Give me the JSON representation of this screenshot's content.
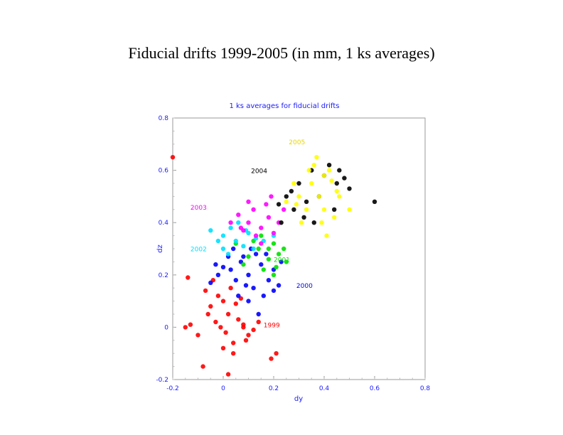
{
  "slide": {
    "title": "Fiducial drifts 1999-2005 (in mm, 1 ks averages)"
  },
  "chart_data": {
    "type": "scatter",
    "title": "1 ks averages for fiducial drifts",
    "xlabel": "dy",
    "ylabel": "dz",
    "xlim": [
      -0.2,
      0.8
    ],
    "ylim": [
      -0.2,
      0.8
    ],
    "xticks": [
      "-0.2",
      "0",
      "0.2",
      "0.4",
      "0.6",
      "0.8"
    ],
    "yticks": [
      "-0.2",
      "0",
      "0.2",
      "0.4",
      "0.6",
      "0.8"
    ],
    "grid": false,
    "series": [
      {
        "name": "1999",
        "color": "#ff0000",
        "label_at": [
          0.16,
          0.0
        ],
        "points": [
          [
            0.0,
            0.1
          ],
          [
            -0.05,
            0.08
          ],
          [
            0.02,
            0.05
          ],
          [
            -0.03,
            0.02
          ],
          [
            0.01,
            -0.02
          ],
          [
            0.04,
            -0.06
          ],
          [
            -0.02,
            0.12
          ],
          [
            0.03,
            0.15
          ],
          [
            0.06,
            0.03
          ],
          [
            0.0,
            -0.08
          ],
          [
            -0.06,
            0.05
          ],
          [
            0.08,
            0.0
          ],
          [
            0.1,
            -0.03
          ],
          [
            0.12,
            -0.01
          ],
          [
            -0.1,
            -0.03
          ],
          [
            -0.15,
            0.0
          ],
          [
            -0.13,
            0.01
          ],
          [
            0.02,
            -0.18
          ],
          [
            0.04,
            -0.1
          ],
          [
            -0.07,
            0.14
          ],
          [
            0.05,
            0.09
          ],
          [
            -0.01,
            0.0
          ],
          [
            -0.2,
            0.65
          ],
          [
            -0.14,
            0.19
          ],
          [
            0.08,
            0.01
          ],
          [
            0.09,
            -0.05
          ],
          [
            0.07,
            0.11
          ],
          [
            -0.04,
            0.18
          ],
          [
            -0.08,
            -0.15
          ],
          [
            0.14,
            0.02
          ],
          [
            0.21,
            -0.1
          ],
          [
            0.19,
            -0.12
          ]
        ]
      },
      {
        "name": "2000",
        "color": "#0000ff",
        "label_at": [
          0.29,
          0.15
        ],
        "points": [
          [
            0.03,
            0.22
          ],
          [
            0.07,
            0.25
          ],
          [
            0.1,
            0.2
          ],
          [
            0.05,
            0.18
          ],
          [
            0.0,
            0.23
          ],
          [
            0.12,
            0.15
          ],
          [
            0.15,
            0.24
          ],
          [
            0.08,
            0.27
          ],
          [
            -0.02,
            0.2
          ],
          [
            0.18,
            0.18
          ],
          [
            0.13,
            0.28
          ],
          [
            0.02,
            0.27
          ],
          [
            0.16,
            0.12
          ],
          [
            0.1,
            0.1
          ],
          [
            0.2,
            0.22
          ],
          [
            -0.05,
            0.17
          ],
          [
            0.22,
            0.16
          ],
          [
            0.06,
            0.12
          ],
          [
            0.11,
            0.3
          ],
          [
            0.04,
            0.3
          ],
          [
            0.17,
            0.28
          ],
          [
            0.09,
            0.16
          ],
          [
            0.23,
            0.25
          ],
          [
            -0.03,
            0.24
          ],
          [
            0.14,
            0.05
          ],
          [
            0.2,
            0.14
          ]
        ]
      },
      {
        "name": "2001",
        "color": "#00e000",
        "label_at": [
          0.2,
          0.25
        ],
        "points": [
          [
            0.1,
            0.27
          ],
          [
            0.14,
            0.3
          ],
          [
            0.18,
            0.26
          ],
          [
            0.2,
            0.32
          ],
          [
            0.16,
            0.22
          ],
          [
            0.22,
            0.28
          ],
          [
            0.12,
            0.33
          ],
          [
            0.08,
            0.24
          ],
          [
            0.24,
            0.3
          ],
          [
            0.15,
            0.35
          ],
          [
            0.2,
            0.2
          ],
          [
            0.25,
            0.25
          ],
          [
            0.05,
            0.32
          ],
          [
            0.18,
            0.3
          ],
          [
            0.21,
            0.23
          ]
        ]
      },
      {
        "name": "2002",
        "color": "#00e0ff",
        "label_at": [
          -0.13,
          0.29
        ],
        "points": [
          [
            0.0,
            0.3
          ],
          [
            0.05,
            0.33
          ],
          [
            0.1,
            0.36
          ],
          [
            0.08,
            0.31
          ],
          [
            0.03,
            0.38
          ],
          [
            -0.02,
            0.33
          ],
          [
            0.13,
            0.34
          ],
          [
            0.06,
            0.4
          ],
          [
            0.12,
            0.3
          ],
          [
            0.02,
            0.28
          ],
          [
            0.16,
            0.33
          ],
          [
            0.0,
            0.35
          ],
          [
            0.09,
            0.37
          ],
          [
            -0.05,
            0.37
          ],
          [
            0.2,
            0.35
          ]
        ]
      },
      {
        "name": "2003",
        "color": "#ff00ff",
        "label_at": [
          -0.13,
          0.45
        ],
        "points": [
          [
            0.1,
            0.4
          ],
          [
            0.15,
            0.38
          ],
          [
            0.12,
            0.45
          ],
          [
            0.18,
            0.42
          ],
          [
            0.08,
            0.37
          ],
          [
            0.2,
            0.36
          ],
          [
            0.13,
            0.35
          ],
          [
            0.17,
            0.47
          ],
          [
            0.06,
            0.43
          ],
          [
            0.22,
            0.4
          ],
          [
            0.1,
            0.48
          ],
          [
            0.15,
            0.32
          ],
          [
            0.03,
            0.4
          ],
          [
            0.24,
            0.45
          ],
          [
            0.19,
            0.5
          ],
          [
            0.07,
            0.38
          ]
        ]
      },
      {
        "name": "2004",
        "color": "#000000",
        "label_at": [
          0.11,
          0.59
        ],
        "points": [
          [
            0.25,
            0.5
          ],
          [
            0.3,
            0.55
          ],
          [
            0.35,
            0.6
          ],
          [
            0.28,
            0.45
          ],
          [
            0.4,
            0.58
          ],
          [
            0.38,
            0.5
          ],
          [
            0.32,
            0.42
          ],
          [
            0.22,
            0.47
          ],
          [
            0.45,
            0.55
          ],
          [
            0.42,
            0.62
          ],
          [
            0.36,
            0.4
          ],
          [
            0.27,
            0.52
          ],
          [
            0.48,
            0.57
          ],
          [
            0.33,
            0.48
          ],
          [
            0.23,
            0.4
          ],
          [
            0.5,
            0.53
          ],
          [
            0.44,
            0.45
          ],
          [
            0.6,
            0.48
          ],
          [
            0.46,
            0.6
          ]
        ]
      },
      {
        "name": "2005",
        "color": "#ffff00",
        "label_at": [
          0.26,
          0.7
        ],
        "points": [
          [
            0.3,
            0.5
          ],
          [
            0.35,
            0.55
          ],
          [
            0.4,
            0.58
          ],
          [
            0.33,
            0.45
          ],
          [
            0.38,
            0.5
          ],
          [
            0.42,
            0.6
          ],
          [
            0.28,
            0.55
          ],
          [
            0.36,
            0.62
          ],
          [
            0.45,
            0.52
          ],
          [
            0.31,
            0.4
          ],
          [
            0.4,
            0.45
          ],
          [
            0.25,
            0.48
          ],
          [
            0.43,
            0.56
          ],
          [
            0.34,
            0.6
          ],
          [
            0.39,
            0.4
          ],
          [
            0.46,
            0.5
          ],
          [
            0.29,
            0.47
          ],
          [
            0.37,
            0.65
          ],
          [
            0.41,
            0.35
          ],
          [
            0.5,
            0.45
          ],
          [
            0.44,
            0.42
          ]
        ]
      }
    ]
  }
}
